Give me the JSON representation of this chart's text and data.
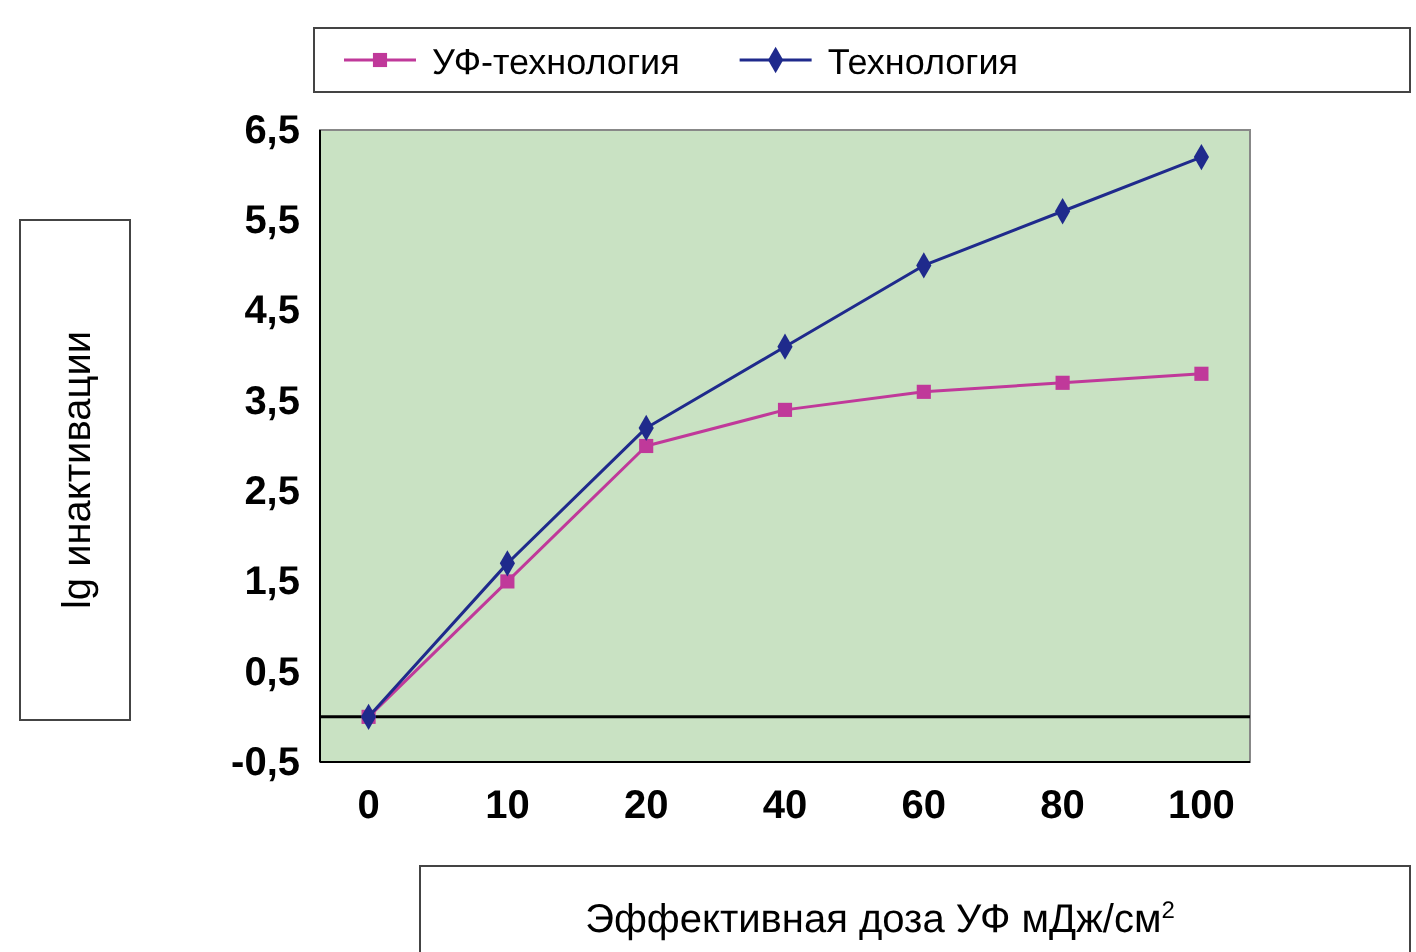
{
  "chart_data": {
    "type": "line",
    "xlabel": "Эффективная доза УФ мДж/см$^{2}$",
    "ylabel": "lg инактивации",
    "categories": [
      "0",
      "10",
      "20",
      "40",
      "60",
      "80",
      "100"
    ],
    "series": [
      {
        "name": "УФ-технология",
        "color": "#c0399a",
        "marker": "square",
        "values": [
          0,
          1.5,
          3.0,
          3.4,
          3.6,
          3.7,
          3.8
        ]
      },
      {
        "name": "Технология",
        "color": "#1f2a8c",
        "marker": "diamond",
        "values": [
          0,
          1.7,
          3.2,
          4.1,
          5.0,
          5.6,
          6.2
        ]
      }
    ],
    "ylim": [
      -0.5,
      6.5
    ],
    "yticks": [
      {
        "value": -0.5,
        "label": "-0,5"
      },
      {
        "value": 0.5,
        "label": "0,5"
      },
      {
        "value": 1.5,
        "label": "1,5"
      },
      {
        "value": 2.5,
        "label": "2,5"
      },
      {
        "value": 3.5,
        "label": "3,5"
      },
      {
        "value": 4.5,
        "label": "4,5"
      },
      {
        "value": 5.5,
        "label": "5,5"
      },
      {
        "value": 6.5,
        "label": "6,5"
      }
    ],
    "ref_lines": [
      {
        "axis": "y",
        "value": 0,
        "color": "#000000"
      }
    ],
    "legend": "top",
    "grid": false
  }
}
